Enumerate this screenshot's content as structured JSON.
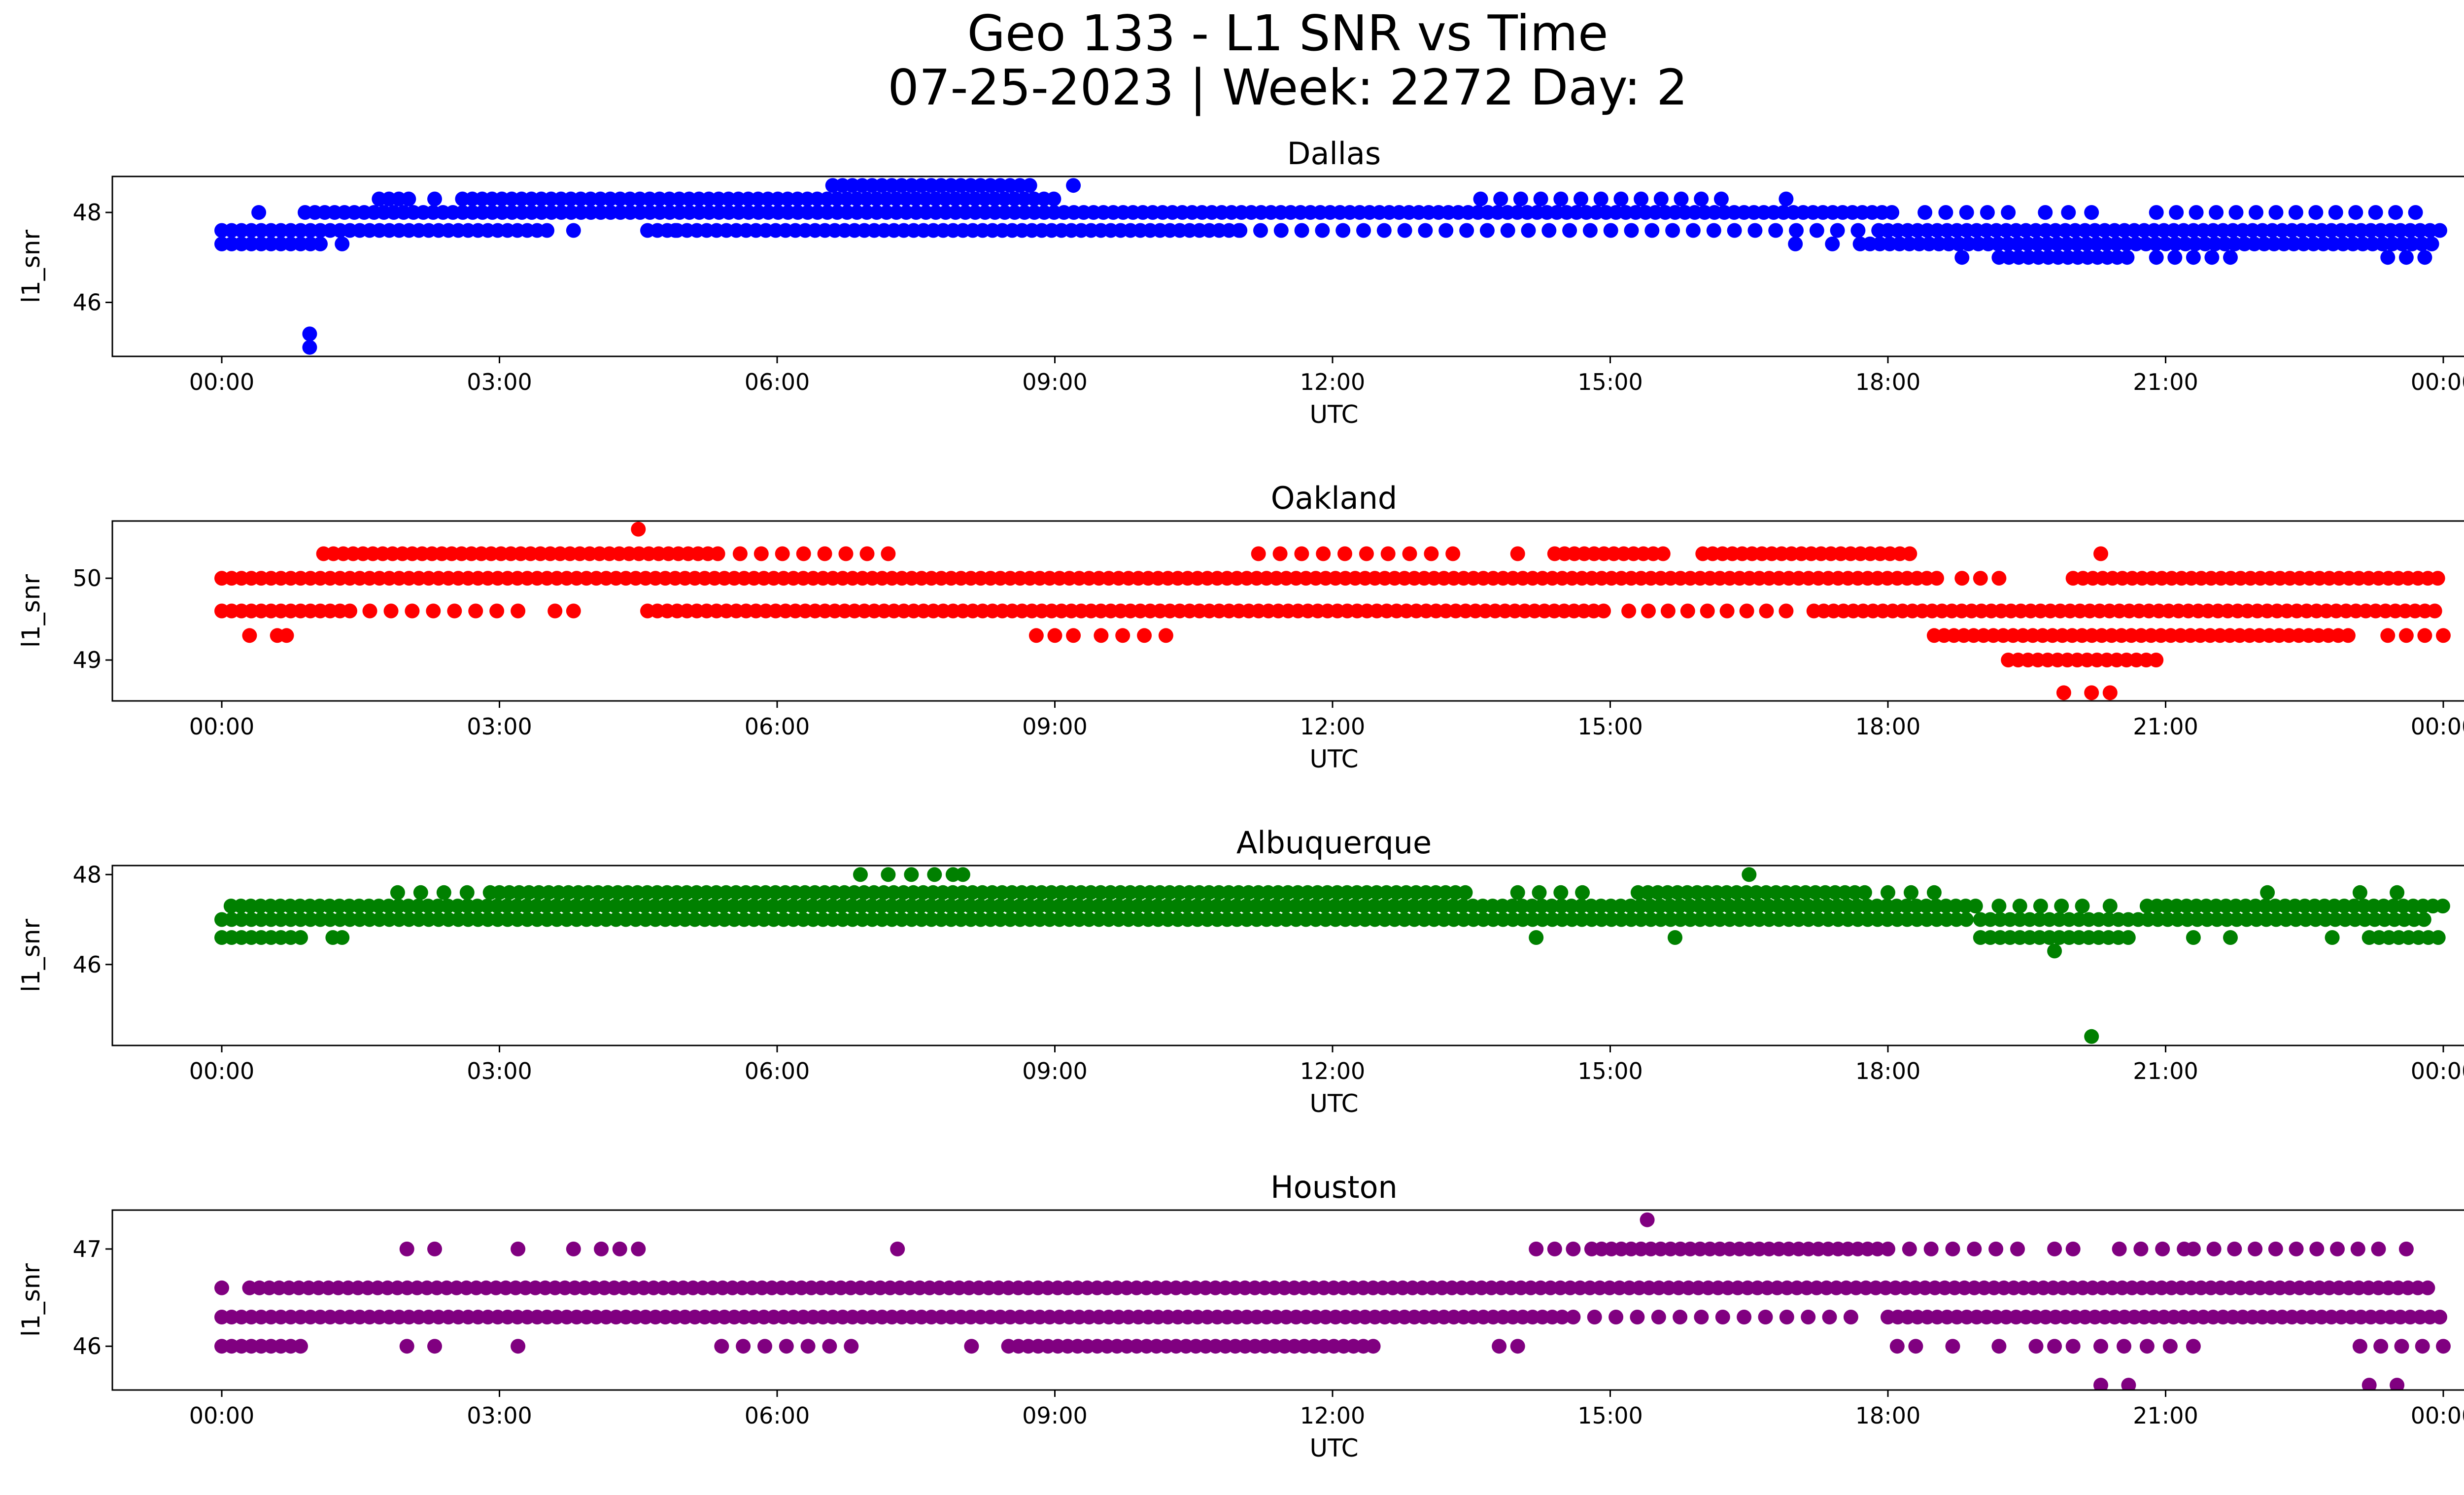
{
  "figure": {
    "title_line1": "Geo 133 - L1 SNR vs Time",
    "title_line2": "07-25-2023 | Week: 2272 Day: 2"
  },
  "chart_data": [
    {
      "type": "scatter",
      "title": "Dallas",
      "xlabel": "UTC",
      "ylabel": "l1_snr",
      "color": "#0000ff",
      "xlim": [
        "00:00",
        "24:00"
      ],
      "xticks": [
        "00:00",
        "03:00",
        "06:00",
        "09:00",
        "12:00",
        "15:00",
        "18:00",
        "21:00",
        "00:00"
      ],
      "ylim": [
        44.8,
        48.8
      ],
      "yticks": [
        46,
        48
      ],
      "levels": [
        {
          "y": 48.6,
          "ranges": [
            [
              6.6,
              8.8
            ]
          ],
          "sparse": [
            [
              9.2
            ]
          ]
        },
        {
          "y": 48.3,
          "ranges": [
            [
              1.7,
              2.1
            ],
            [
              2.6,
              9.0
            ]
          ],
          "sparse": [
            [
              2.3
            ],
            [
              13.6,
              16.2
            ],
            [
              16.9
            ]
          ]
        },
        {
          "y": 48.0,
          "ranges": [
            [
              0.9,
              18.1
            ]
          ],
          "sparse": [
            [
              0.4
            ],
            [
              18.4,
              19.3
            ],
            [
              19.7,
              20.2
            ],
            [
              20.9,
              23.7
            ]
          ]
        },
        {
          "y": 47.6,
          "ranges": [
            [
              0.0,
              3.6
            ],
            [
              4.6,
              11.0
            ],
            [
              18.0,
              24.0
            ]
          ],
          "sparse": [
            [
              3.8
            ],
            [
              4.9
            ],
            [
              11.0,
              17.9
            ]
          ]
        },
        {
          "y": 47.3,
          "ranges": [
            [
              0.0,
              1.1
            ],
            [
              17.7,
              23.9
            ]
          ],
          "sparse": [
            [
              1.3
            ],
            [
              17.0
            ],
            [
              17.4
            ]
          ]
        },
        {
          "y": 47.0,
          "ranges": [
            [
              19.2,
              20.6
            ]
          ],
          "sparse": [
            [
              18.8
            ],
            [
              20.9,
              21.7
            ],
            [
              23.4,
              23.8
            ]
          ]
        },
        {
          "y": 45.3,
          "ranges": [],
          "sparse": [
            [
              0.95
            ]
          ]
        },
        {
          "y": 45.0,
          "ranges": [],
          "sparse": [
            [
              0.95
            ]
          ]
        }
      ]
    },
    {
      "type": "scatter",
      "title": "Oakland",
      "xlabel": "UTC",
      "ylabel": "l1_snr",
      "color": "#ff0000",
      "xlim": [
        "00:00",
        "24:00"
      ],
      "xticks": [
        "00:00",
        "03:00",
        "06:00",
        "09:00",
        "12:00",
        "15:00",
        "18:00",
        "21:00",
        "00:00"
      ],
      "ylim": [
        48.5,
        50.7
      ],
      "yticks": [
        49,
        50
      ],
      "levels": [
        {
          "y": 50.6,
          "ranges": [],
          "sparse": [
            [
              4.5
            ]
          ]
        },
        {
          "y": 50.3,
          "ranges": [
            [
              1.1,
              5.4
            ],
            [
              14.4,
              15.6
            ],
            [
              16.0,
              18.3
            ]
          ],
          "sparse": [
            [
              5.6,
              7.2
            ],
            [
              11.2,
              13.3
            ],
            [
              14.0
            ],
            [
              20.3
            ]
          ]
        },
        {
          "y": 50.0,
          "ranges": [
            [
              0.0,
              18.6
            ],
            [
              20.0,
              24.0
            ]
          ],
          "sparse": [
            [
              18.8,
              19.2
            ]
          ]
        },
        {
          "y": 49.6,
          "ranges": [
            [
              0.0,
              1.4
            ],
            [
              4.6,
              15.0
            ],
            [
              17.2,
              24.0
            ]
          ],
          "sparse": [
            [
              1.6,
              3.2
            ],
            [
              3.6,
              3.8
            ],
            [
              15.2,
              16.9
            ]
          ]
        },
        {
          "y": 49.3,
          "ranges": [
            [
              18.5,
              23.0
            ]
          ],
          "sparse": [
            [
              0.3
            ],
            [
              0.6,
              0.7
            ],
            [
              8.8,
              9.2
            ],
            [
              9.5,
              10.2
            ],
            [
              23.4,
              24.0
            ]
          ]
        },
        {
          "y": 49.0,
          "ranges": [
            [
              19.3,
              21.0
            ]
          ],
          "sparse": []
        },
        {
          "y": 48.6,
          "ranges": [],
          "sparse": [
            [
              19.9
            ],
            [
              20.2,
              20.4
            ]
          ]
        }
      ]
    },
    {
      "type": "scatter",
      "title": "Albuquerque",
      "xlabel": "UTC",
      "ylabel": "l1_snr",
      "color": "#008000",
      "xlim": [
        "00:00",
        "24:00"
      ],
      "xticks": [
        "00:00",
        "03:00",
        "06:00",
        "09:00",
        "12:00",
        "15:00",
        "18:00",
        "21:00",
        "00:00"
      ],
      "ylim": [
        44.2,
        48.2
      ],
      "yticks": [
        46,
        48
      ],
      "levels": [
        {
          "y": 48.0,
          "ranges": [
            [
              7.9,
              8.1
            ]
          ],
          "sparse": [
            [
              6.9
            ],
            [
              7.2,
              7.7
            ],
            [
              16.5
            ]
          ]
        },
        {
          "y": 47.6,
          "ranges": [
            [
              3.0,
              13.5
            ],
            [
              15.3,
              17.8
            ]
          ],
          "sparse": [
            [
              1.9,
              2.9
            ],
            [
              14.0,
              14.7
            ],
            [
              18.0,
              18.5
            ],
            [
              22.1
            ],
            [
              23.1
            ],
            [
              23.5
            ]
          ]
        },
        {
          "y": 47.3,
          "ranges": [
            [
              0.1,
              19.0
            ],
            [
              20.8,
              24.0
            ]
          ],
          "sparse": [
            [
              19.2,
              20.1
            ],
            [
              20.4
            ]
          ]
        },
        {
          "y": 47.0,
          "ranges": [
            [
              0.0,
              18.9
            ],
            [
              19.0,
              23.8
            ]
          ],
          "sparse": []
        },
        {
          "y": 46.6,
          "ranges": [
            [
              0.0,
              0.9
            ],
            [
              19.0,
              20.6
            ],
            [
              23.2,
              24.0
            ]
          ],
          "sparse": [
            [
              1.2,
              1.3
            ],
            [
              14.2
            ],
            [
              15.7
            ],
            [
              21.3
            ],
            [
              21.7
            ],
            [
              22.8
            ]
          ]
        },
        {
          "y": 46.3,
          "ranges": [],
          "sparse": [
            [
              19.8
            ]
          ]
        },
        {
          "y": 44.4,
          "ranges": [],
          "sparse": [
            [
              20.2
            ]
          ]
        }
      ]
    },
    {
      "type": "scatter",
      "title": "Houston",
      "xlabel": "UTC",
      "ylabel": "l1_snr",
      "color": "#800080",
      "xlim": [
        "00:00",
        "24:00"
      ],
      "xticks": [
        "00:00",
        "03:00",
        "06:00",
        "09:00",
        "12:00",
        "15:00",
        "18:00",
        "21:00",
        "00:00"
      ],
      "ylim": [
        45.55,
        47.4
      ],
      "yticks": [
        46,
        47
      ],
      "levels": [
        {
          "y": 47.3,
          "ranges": [],
          "sparse": [
            [
              15.4
            ]
          ]
        },
        {
          "y": 47.0,
          "ranges": [
            [
              14.8,
              17.9
            ]
          ],
          "sparse": [
            [
              2.0,
              2.3
            ],
            [
              3.2
            ],
            [
              3.8
            ],
            [
              4.1,
              4.5
            ],
            [
              7.3
            ],
            [
              14.2,
              14.6
            ],
            [
              18.0,
              19.4
            ],
            [
              19.8,
              20.0
            ],
            [
              20.5,
              21.2
            ],
            [
              21.3,
              23.3
            ],
            [
              23.6
            ]
          ]
        },
        {
          "y": 46.6,
          "ranges": [
            [
              0.3,
              23.9
            ]
          ],
          "sparse": [
            [
              0.0
            ]
          ]
        },
        {
          "y": 46.3,
          "ranges": [
            [
              0.0,
              14.5
            ],
            [
              18.0,
              24.0
            ]
          ],
          "sparse": [
            [
              14.6,
              17.6
            ]
          ]
        },
        {
          "y": 46.0,
          "ranges": [
            [
              0.0,
              0.9
            ],
            [
              8.5,
              12.5
            ]
          ],
          "sparse": [
            [
              2.0
            ],
            [
              2.3
            ],
            [
              3.2
            ],
            [
              5.4,
              6.8
            ],
            [
              8.1
            ],
            [
              13.8,
              14.0
            ],
            [
              18.1,
              18.3
            ],
            [
              18.7
            ],
            [
              19.2
            ],
            [
              19.6,
              20.0
            ],
            [
              20.3,
              21.3
            ],
            [
              23.1,
              24.0
            ]
          ]
        },
        {
          "y": 45.6,
          "ranges": [],
          "sparse": [
            [
              20.3,
              20.6
            ],
            [
              23.2,
              23.5
            ]
          ]
        }
      ]
    }
  ]
}
